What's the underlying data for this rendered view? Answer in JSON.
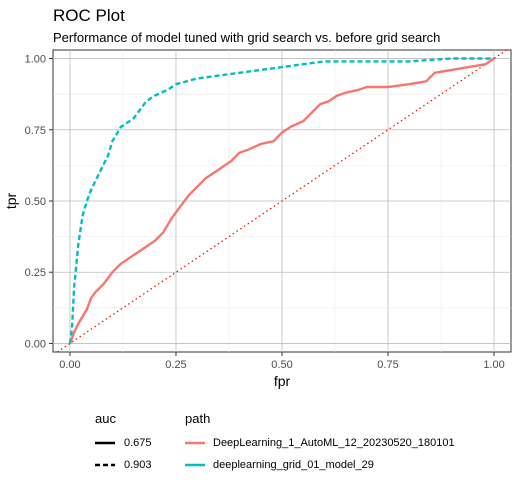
{
  "chart_data": {
    "type": "line",
    "title": "ROC Plot",
    "subtitle": "Performance of model tuned with grid search vs. before grid search",
    "xlabel": "fpr",
    "ylabel": "tpr",
    "xlim": [
      -0.04,
      1.04
    ],
    "ylim": [
      -0.03,
      1.03
    ],
    "x_ticks": [
      "0.00",
      "0.25",
      "0.50",
      "0.75",
      "1.00"
    ],
    "y_ticks": [
      "0.00",
      "0.25",
      "0.50",
      "0.75",
      "1.00"
    ],
    "grid": true,
    "reference_line": {
      "from": [
        0,
        0
      ],
      "to": [
        1,
        1
      ],
      "color": "#ff0000",
      "style": "dotted"
    },
    "series": [
      {
        "name": "DeepLearning_1_AutoML_12_20230520_180101",
        "auc": "0.675",
        "color": "#f8766d",
        "linetype": "solid",
        "x": [
          0.0,
          0.01,
          0.02,
          0.04,
          0.05,
          0.06,
          0.08,
          0.1,
          0.12,
          0.15,
          0.18,
          0.2,
          0.22,
          0.24,
          0.26,
          0.28,
          0.3,
          0.32,
          0.35,
          0.38,
          0.4,
          0.42,
          0.45,
          0.48,
          0.5,
          0.52,
          0.55,
          0.57,
          0.59,
          0.61,
          0.63,
          0.65,
          0.68,
          0.7,
          0.73,
          0.75,
          0.8,
          0.84,
          0.86,
          0.9,
          0.94,
          0.98,
          1.0
        ],
        "y": [
          0.0,
          0.04,
          0.07,
          0.12,
          0.16,
          0.18,
          0.21,
          0.25,
          0.28,
          0.31,
          0.34,
          0.36,
          0.39,
          0.44,
          0.48,
          0.52,
          0.55,
          0.58,
          0.61,
          0.64,
          0.67,
          0.68,
          0.7,
          0.71,
          0.74,
          0.76,
          0.78,
          0.81,
          0.84,
          0.85,
          0.87,
          0.88,
          0.89,
          0.9,
          0.9,
          0.9,
          0.91,
          0.92,
          0.95,
          0.96,
          0.97,
          0.98,
          1.0
        ]
      },
      {
        "name": "deeplearning_grid_01_model_29",
        "auc": "0.903",
        "color": "#00bfc4",
        "linetype": "dashed",
        "x": [
          0.0,
          0.005,
          0.01,
          0.02,
          0.03,
          0.04,
          0.05,
          0.07,
          0.09,
          0.1,
          0.12,
          0.15,
          0.18,
          0.2,
          0.23,
          0.25,
          0.3,
          0.35,
          0.4,
          0.45,
          0.5,
          0.55,
          0.6,
          0.7,
          0.8,
          0.9,
          1.0
        ],
        "y": [
          0.0,
          0.06,
          0.2,
          0.35,
          0.45,
          0.5,
          0.54,
          0.6,
          0.66,
          0.71,
          0.76,
          0.79,
          0.85,
          0.87,
          0.89,
          0.91,
          0.93,
          0.94,
          0.95,
          0.96,
          0.97,
          0.98,
          0.99,
          0.99,
          0.99,
          1.0,
          1.0
        ]
      }
    ],
    "legend": {
      "placement": "bottom",
      "auc_title": "auc",
      "path_title": "path",
      "auc_entries": [
        {
          "label": "0.675",
          "linetype": "solid"
        },
        {
          "label": "0.903",
          "linetype": "dashed"
        }
      ],
      "path_entries": [
        {
          "label": "DeepLearning_1_AutoML_12_20230520_180101",
          "color": "#f8766d"
        },
        {
          "label": "deeplearning_grid_01_model_29",
          "color": "#00bfc4"
        }
      ]
    }
  }
}
